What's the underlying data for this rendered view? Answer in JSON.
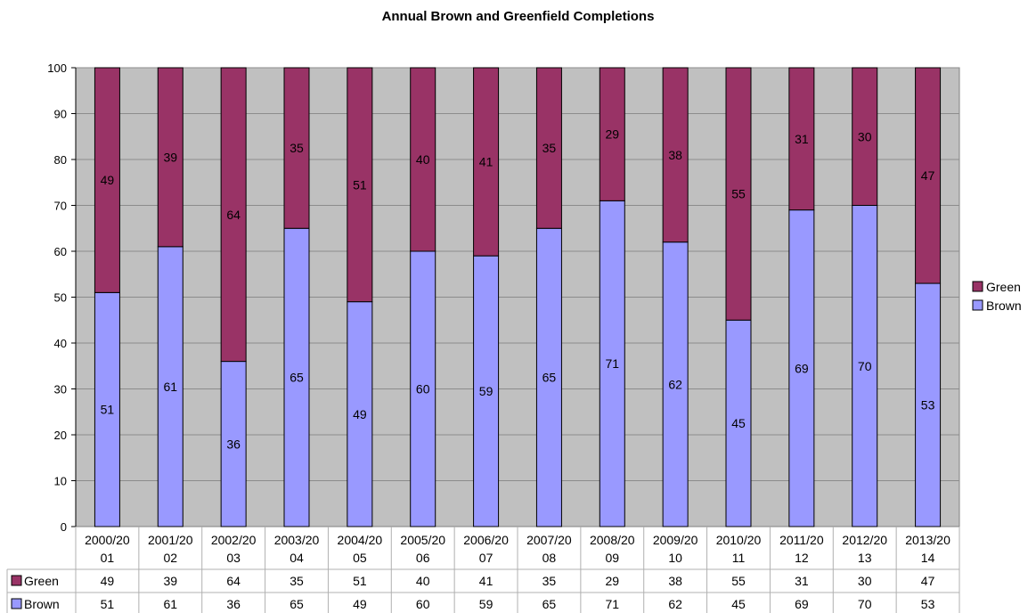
{
  "chart_data": {
    "type": "bar",
    "stacked": true,
    "title": "Annual Brown and Greenfield Completions",
    "categories": [
      [
        "2000/20",
        "01"
      ],
      [
        "2001/20",
        "02"
      ],
      [
        "2002/20",
        "03"
      ],
      [
        "2003/20",
        "04"
      ],
      [
        "2004/20",
        "05"
      ],
      [
        "2005/20",
        "06"
      ],
      [
        "2006/20",
        "07"
      ],
      [
        "2007/20",
        "08"
      ],
      [
        "2008/20",
        "09"
      ],
      [
        "2009/20",
        "10"
      ],
      [
        "2010/20",
        "11"
      ],
      [
        "2011/20",
        "12"
      ],
      [
        "2012/20",
        "13"
      ],
      [
        "2013/20",
        "14"
      ]
    ],
    "series": [
      {
        "name": "Brown",
        "color": "#9999ff",
        "values": [
          51,
          61,
          36,
          65,
          49,
          60,
          59,
          65,
          71,
          62,
          45,
          69,
          70,
          53
        ]
      },
      {
        "name": "Green",
        "color": "#993366",
        "values": [
          49,
          39,
          64,
          35,
          51,
          40,
          41,
          35,
          29,
          38,
          55,
          31,
          30,
          47
        ]
      }
    ],
    "ylim": [
      0,
      100
    ],
    "yticks": [
      0,
      10,
      20,
      30,
      40,
      50,
      60,
      70,
      80,
      90,
      100
    ],
    "xlabel": "",
    "ylabel": "",
    "grid": true,
    "plot_background": "#c0c0c0",
    "legend_position": "right",
    "legend_order": [
      "Green",
      "Brown"
    ],
    "data_table": true,
    "table_order": [
      "Green",
      "Brown"
    ]
  }
}
